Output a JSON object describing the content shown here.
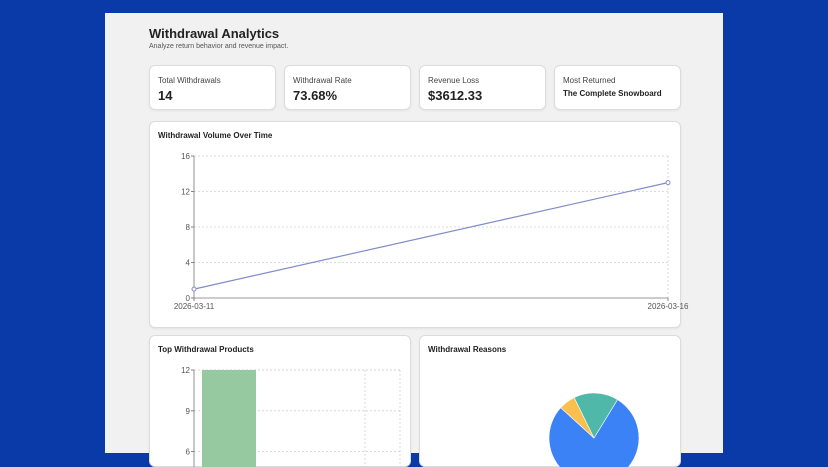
{
  "header": {
    "title": "Withdrawal Analytics",
    "subtitle": "Analyze return behavior and revenue impact."
  },
  "stats": [
    {
      "label": "Total Withdrawals",
      "value": "14"
    },
    {
      "label": "Withdrawal Rate",
      "value": "73.68%"
    },
    {
      "label": "Revenue Loss",
      "value": "$3612.33"
    },
    {
      "label": "Most Returned",
      "value": "The Complete Snowboard"
    }
  ],
  "line_card": {
    "title": "Withdrawal Volume Over Time"
  },
  "bar_card": {
    "title": "Top Withdrawal Products"
  },
  "pie_card": {
    "title": "Withdrawal Reasons"
  },
  "colors": {
    "line": "#7f8cc8",
    "bar": "#97c9a0",
    "pie": [
      "#3b82f6",
      "#fbbf4d",
      "#4fb8a8"
    ]
  },
  "chart_data": [
    {
      "type": "line",
      "title": "Withdrawal Volume Over Time",
      "x": [
        "2026-03-11",
        "2026-03-16"
      ],
      "y": [
        1,
        13
      ],
      "ylim": [
        0,
        16
      ],
      "yticks": [
        0,
        4,
        8,
        12,
        16
      ],
      "grid": true
    },
    {
      "type": "bar",
      "title": "Top Withdrawal Products",
      "categories": [
        ""
      ],
      "values": [
        12
      ],
      "ylim": [
        0,
        12
      ],
      "yticks": [
        6,
        9,
        12
      ],
      "grid": true
    },
    {
      "type": "pie",
      "title": "Withdrawal Reasons",
      "values": [
        78,
        6,
        16
      ]
    }
  ]
}
